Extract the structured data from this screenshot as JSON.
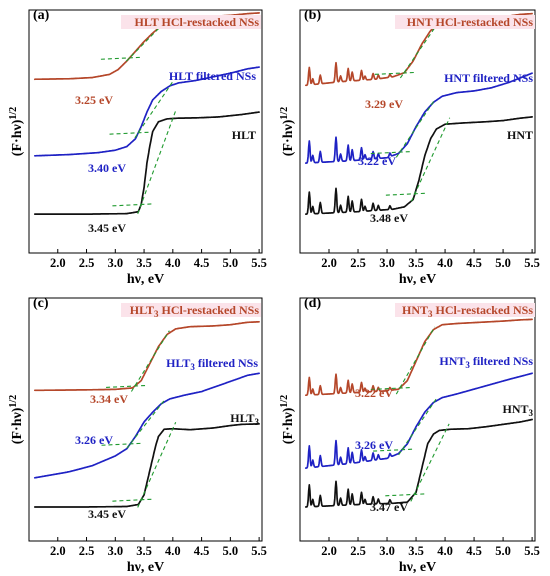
{
  "chart_data": [
    {
      "type": "line",
      "panel_label": "(a)",
      "xlabel": "hν, eV",
      "ylabel": "(F·hν)",
      "ylabel_sup": "1/2",
      "xlim": [
        1.5,
        5.55
      ],
      "x_ticks": [
        "2.0",
        "2.5",
        "3.0",
        "3.5",
        "4.0",
        "4.5",
        "5.0",
        "5.5"
      ],
      "colors": {
        "restacked": "#b5472a",
        "filtered": "#1f22c4",
        "bulk": "#111111",
        "fit": "#1f9a2e"
      },
      "series": [
        {
          "name": "HLT HCl-restacked NSs",
          "label_main": "HLT HCl-restacked NSs",
          "label_sub": "",
          "label_tail": "",
          "color": "#b5472a",
          "band_gap": "3.25 eV",
          "eg": 3.25,
          "x": [
            1.6,
            2.2,
            2.6,
            2.9,
            3.05,
            3.2,
            3.35,
            3.5,
            3.65,
            3.8,
            3.95,
            4.1,
            4.3,
            4.6,
            5.0,
            5.3,
            5.5
          ],
          "y": [
            0.715,
            0.717,
            0.722,
            0.735,
            0.755,
            0.79,
            0.83,
            0.87,
            0.905,
            0.935,
            0.952,
            0.962,
            0.968,
            0.973,
            0.978,
            0.985,
            0.988
          ]
        },
        {
          "name": "HLT filtered NSs",
          "label_main": "HLT filtered NSs",
          "label_sub": "",
          "label_tail": "",
          "color": "#1f22c4",
          "band_gap": "3.40 eV",
          "eg": 3.4,
          "x": [
            1.6,
            2.2,
            2.7,
            3.0,
            3.2,
            3.35,
            3.45,
            3.55,
            3.65,
            3.8,
            3.95,
            4.1,
            4.4,
            4.7,
            5.0,
            5.3,
            5.5
          ],
          "y": [
            0.4,
            0.405,
            0.413,
            0.423,
            0.438,
            0.47,
            0.52,
            0.58,
            0.63,
            0.665,
            0.688,
            0.7,
            0.71,
            0.725,
            0.74,
            0.758,
            0.765
          ]
        },
        {
          "name": "HLT",
          "label_main": "HLT",
          "label_sub": "",
          "label_tail": "",
          "color": "#111111",
          "band_gap": "3.45 eV",
          "eg": 3.45,
          "x": [
            1.6,
            2.5,
            3.2,
            3.4,
            3.45,
            3.5,
            3.55,
            3.6,
            3.65,
            3.75,
            3.9,
            4.1,
            4.4,
            4.8,
            5.2,
            5.5
          ],
          "y": [
            0.16,
            0.16,
            0.162,
            0.17,
            0.2,
            0.27,
            0.37,
            0.44,
            0.5,
            0.54,
            0.552,
            0.555,
            0.556,
            0.56,
            0.57,
            0.58
          ]
        }
      ]
    },
    {
      "type": "line",
      "panel_label": "(b)",
      "xlabel": "hν, eV",
      "ylabel": "(F·hν)",
      "ylabel_sup": "1/2",
      "xlim": [
        1.5,
        5.55
      ],
      "x_ticks": [
        "2.0",
        "2.5",
        "3.0",
        "3.5",
        "4.0",
        "4.5",
        "5.0",
        "5.5"
      ],
      "colors": {
        "restacked": "#b5472a",
        "filtered": "#1f22c4",
        "bulk": "#111111",
        "fit": "#1f9a2e"
      },
      "series": [
        {
          "name": "HNT HCl-restacked NSs",
          "label_main": "HNT HCl-restacked NSs",
          "label_sub": "",
          "label_tail": "",
          "color": "#b5472a",
          "band_gap": "3.29 eV",
          "eg": 3.29,
          "spiky": true,
          "x": [
            1.6,
            2.2,
            2.8,
            3.1,
            3.3,
            3.45,
            3.6,
            3.75,
            3.9,
            4.05,
            4.3,
            4.7,
            5.0,
            5.3,
            5.5
          ],
          "y": [
            0.69,
            0.705,
            0.715,
            0.725,
            0.742,
            0.79,
            0.86,
            0.915,
            0.945,
            0.958,
            0.96,
            0.962,
            0.972,
            0.982,
            0.985
          ]
        },
        {
          "name": "HNT filtered NSs",
          "label_main": "HNT filtered NSs",
          "label_sub": "",
          "label_tail": "",
          "color": "#1f22c4",
          "band_gap": "3.22 eV",
          "eg": 3.22,
          "spiky": true,
          "x": [
            1.6,
            2.4,
            3.0,
            3.2,
            3.35,
            3.5,
            3.65,
            3.8,
            3.95,
            4.2,
            4.5,
            4.8,
            5.1,
            5.5
          ],
          "y": [
            0.37,
            0.38,
            0.392,
            0.41,
            0.45,
            0.52,
            0.58,
            0.62,
            0.645,
            0.66,
            0.667,
            0.68,
            0.702,
            0.74
          ]
        },
        {
          "name": "HNT",
          "label_main": "HNT",
          "label_sub": "",
          "label_tail": "",
          "color": "#111111",
          "band_gap": "3.48 eV",
          "eg": 3.48,
          "spiky": true,
          "x": [
            1.6,
            2.5,
            3.1,
            3.3,
            3.45,
            3.55,
            3.65,
            3.75,
            3.85,
            4.0,
            4.3,
            4.7,
            5.0,
            5.3,
            5.5
          ],
          "y": [
            0.16,
            0.17,
            0.18,
            0.19,
            0.22,
            0.3,
            0.4,
            0.47,
            0.51,
            0.53,
            0.535,
            0.54,
            0.545,
            0.555,
            0.56
          ]
        }
      ]
    },
    {
      "type": "line",
      "panel_label": "(c)",
      "xlabel": "hν, eV",
      "ylabel": "(F·hν)",
      "ylabel_sup": "1/2",
      "xlim": [
        1.5,
        5.55
      ],
      "x_ticks": [
        "2.0",
        "2.5",
        "3.0",
        "3.5",
        "4.0",
        "4.5",
        "5.0",
        "5.5"
      ],
      "colors": {
        "restacked": "#b5472a",
        "filtered": "#1f22c4",
        "bulk": "#111111",
        "fit": "#1f9a2e"
      },
      "series": [
        {
          "name": "HLT3 HCl-restacked NSs",
          "label_main": "HLT",
          "label_sub": "3",
          "label_tail": " HCl-restacked NSs",
          "color": "#b5472a",
          "band_gap": "3.34 eV",
          "eg": 3.34,
          "x": [
            1.6,
            2.5,
            3.0,
            3.3,
            3.45,
            3.6,
            3.75,
            3.9,
            4.05,
            4.3,
            4.7,
            5.0,
            5.3,
            5.5
          ],
          "y": [
            0.62,
            0.622,
            0.624,
            0.63,
            0.66,
            0.73,
            0.8,
            0.85,
            0.873,
            0.882,
            0.885,
            0.89,
            0.9,
            0.902
          ]
        },
        {
          "name": "HLT3 filtered NSs",
          "label_main": "HLT",
          "label_sub": "3",
          "label_tail": " filtered NSs",
          "color": "#1f22c4",
          "band_gap": "3.26 eV",
          "eg": 3.26,
          "x": [
            1.6,
            2.2,
            2.6,
            3.0,
            3.2,
            3.35,
            3.5,
            3.65,
            3.8,
            3.95,
            4.2,
            4.5,
            4.8,
            5.1,
            5.3,
            5.5
          ],
          "y": [
            0.26,
            0.285,
            0.31,
            0.35,
            0.38,
            0.43,
            0.49,
            0.53,
            0.565,
            0.585,
            0.6,
            0.615,
            0.64,
            0.665,
            0.682,
            0.69
          ]
        },
        {
          "name": "HLT3",
          "label_main": "HLT",
          "label_sub": "3",
          "label_tail": "",
          "color": "#111111",
          "band_gap": "3.45 eV",
          "eg": 3.45,
          "x": [
            1.6,
            2.5,
            3.2,
            3.4,
            3.5,
            3.6,
            3.7,
            3.75,
            3.85,
            4.0,
            4.3,
            4.7,
            5.0,
            5.2,
            5.5
          ],
          "y": [
            0.14,
            0.14,
            0.142,
            0.15,
            0.19,
            0.29,
            0.39,
            0.43,
            0.46,
            0.462,
            0.458,
            0.465,
            0.475,
            0.48,
            0.482
          ]
        }
      ]
    },
    {
      "type": "line",
      "panel_label": "(d)",
      "xlabel": "hν, eV",
      "ylabel": "(F·hν)",
      "ylabel_sup": "1/2",
      "xlim": [
        1.5,
        5.55
      ],
      "x_ticks": [
        "2.0",
        "2.5",
        "3.0",
        "3.5",
        "4.0",
        "4.5",
        "5.0",
        "5.5"
      ],
      "colors": {
        "restacked": "#b5472a",
        "filtered": "#1f22c4",
        "bulk": "#111111",
        "fit": "#1f9a2e"
      },
      "series": [
        {
          "name": "HNT3 HCl-restacked NSs",
          "label_main": "HNT",
          "label_sub": "3",
          "label_tail": " HCl-restacked NSs",
          "color": "#b5472a",
          "band_gap": "3.22 eV",
          "eg": 3.22,
          "spiky": true,
          "x": [
            1.6,
            2.4,
            3.0,
            3.2,
            3.35,
            3.5,
            3.65,
            3.8,
            3.95,
            4.2,
            4.6,
            5.0,
            5.3,
            5.5
          ],
          "y": [
            0.6,
            0.61,
            0.618,
            0.625,
            0.66,
            0.74,
            0.82,
            0.87,
            0.89,
            0.895,
            0.9,
            0.905,
            0.91,
            0.912
          ]
        },
        {
          "name": "HNT3 filtered NSs",
          "label_main": "HNT",
          "label_sub": "3",
          "label_tail": " filtered NSs",
          "color": "#1f22c4",
          "band_gap": "3.26 eV",
          "eg": 3.26,
          "spiky": true,
          "x": [
            1.6,
            2.4,
            3.0,
            3.2,
            3.35,
            3.5,
            3.65,
            3.8,
            3.95,
            4.2,
            4.5,
            4.8,
            5.1,
            5.5
          ],
          "y": [
            0.3,
            0.32,
            0.34,
            0.36,
            0.4,
            0.47,
            0.53,
            0.57,
            0.59,
            0.605,
            0.625,
            0.645,
            0.665,
            0.69
          ]
        },
        {
          "name": "HNT3",
          "label_main": "HNT",
          "label_sub": "3",
          "label_tail": "",
          "color": "#111111",
          "band_gap": "3.47 eV",
          "eg": 3.47,
          "spiky": true,
          "x": [
            1.6,
            2.5,
            3.1,
            3.35,
            3.5,
            3.6,
            3.7,
            3.8,
            3.9,
            4.1,
            4.4,
            4.7,
            5.0,
            5.3,
            5.5
          ],
          "y": [
            0.14,
            0.15,
            0.155,
            0.16,
            0.2,
            0.3,
            0.4,
            0.44,
            0.455,
            0.46,
            0.462,
            0.47,
            0.48,
            0.49,
            0.5
          ]
        }
      ]
    }
  ]
}
